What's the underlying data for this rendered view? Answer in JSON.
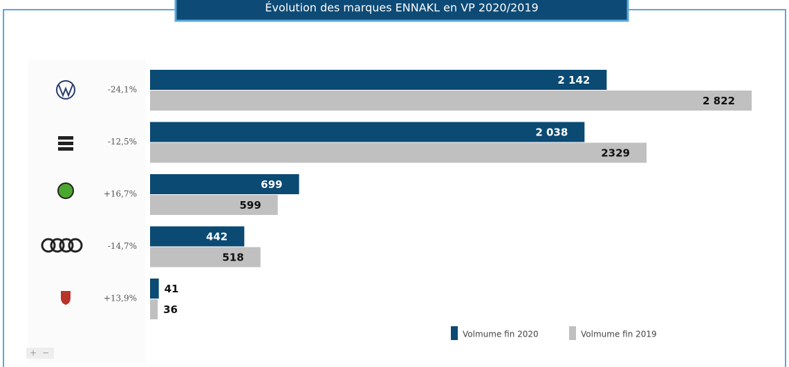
{
  "chart_data": {
    "type": "bar",
    "orientation": "horizontal",
    "title": "Évolution des marques ENNAKL en VP 2020/2019",
    "categories": [
      "-24,1%",
      "-12,5%",
      "+16,7%",
      "-14,7%",
      "+13,9%"
    ],
    "series": [
      {
        "name": "Volmume fin 2020",
        "color": "#0b4a73",
        "values": [
          2142,
          2038,
          699,
          442,
          41
        ],
        "value_labels": [
          "2 142",
          "2 038",
          "699",
          "442",
          "41"
        ]
      },
      {
        "name": "Volmume fin 2019",
        "color": "#c0c0c0",
        "values": [
          2822,
          2329,
          599,
          518,
          36
        ],
        "value_labels": [
          "2 822",
          "2329",
          "599",
          "518",
          "36"
        ]
      }
    ],
    "legend": "bottom-right",
    "controls": [
      "+",
      "−"
    ]
  }
}
